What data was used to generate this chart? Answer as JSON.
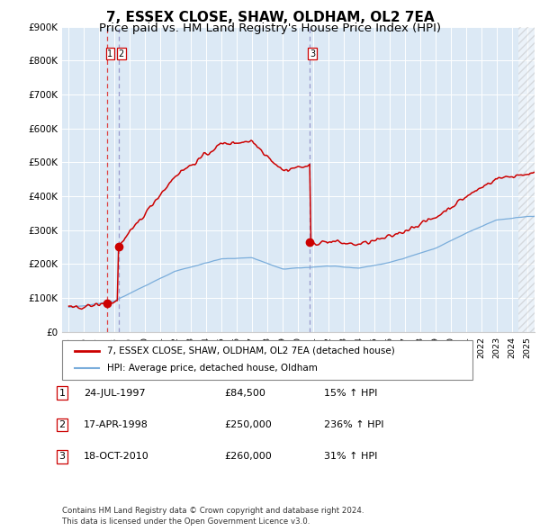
{
  "title": "7, ESSEX CLOSE, SHAW, OLDHAM, OL2 7EA",
  "subtitle": "Price paid vs. HM Land Registry's House Price Index (HPI)",
  "ylim": [
    0,
    900000
  ],
  "yticks": [
    0,
    100000,
    200000,
    300000,
    400000,
    500000,
    600000,
    700000,
    800000,
    900000
  ],
  "ytick_labels": [
    "£0",
    "£100K",
    "£200K",
    "£300K",
    "£400K",
    "£500K",
    "£600K",
    "£700K",
    "£800K",
    "£900K"
  ],
  "xlim_start": 1994.6,
  "xlim_end": 2025.5,
  "plot_bg_color": "#dce9f5",
  "grid_color": "#ffffff",
  "t1_date": 1997.56,
  "t1_price": 84500,
  "t2_date": 1998.29,
  "t2_price": 250000,
  "t3_date": 2010.8,
  "t3_price": 260000,
  "red_color": "#cc0000",
  "blue_color": "#7aaddb",
  "vline1_color": "#dd4444",
  "vline23_color": "#9999cc",
  "hatch_start": 2024.42,
  "legend_entries": [
    {
      "label": "7, ESSEX CLOSE, SHAW, OLDHAM, OL2 7EA (detached house)",
      "color": "#cc0000",
      "lw": 2
    },
    {
      "label": "HPI: Average price, detached house, Oldham",
      "color": "#7aaddb",
      "lw": 1.5
    }
  ],
  "table_rows": [
    {
      "num": "1",
      "date": "24-JUL-1997",
      "price": "£84,500",
      "hpi": "15% ↑ HPI"
    },
    {
      "num": "2",
      "date": "17-APR-1998",
      "price": "£250,000",
      "hpi": "236% ↑ HPI"
    },
    {
      "num": "3",
      "date": "18-OCT-2010",
      "price": "£260,000",
      "hpi": "31% ↑ HPI"
    }
  ],
  "footnote": "Contains HM Land Registry data © Crown copyright and database right 2024.\nThis data is licensed under the Open Government Licence v3.0.",
  "title_fontsize": 11,
  "subtitle_fontsize": 9.5
}
